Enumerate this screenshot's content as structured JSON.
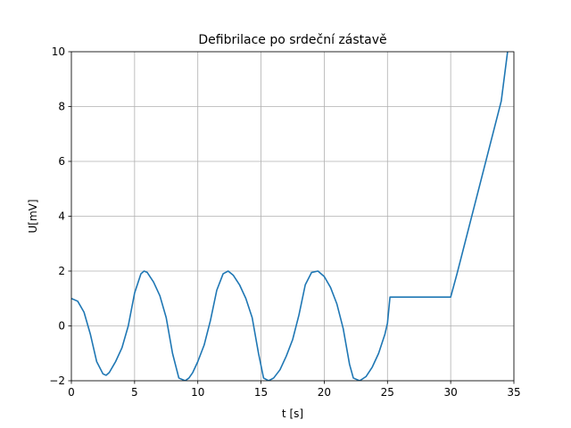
{
  "chart_data": {
    "type": "line",
    "title": "Defibrilace po srdeční zástavě",
    "xlabel": "t [s]",
    "ylabel": "U[mV]",
    "xlim": [
      0,
      35
    ],
    "ylim": [
      -2,
      10
    ],
    "xticks": [
      0,
      5,
      10,
      15,
      20,
      25,
      30,
      35
    ],
    "yticks": [
      -2,
      0,
      2,
      4,
      6,
      8,
      10
    ],
    "grid": true,
    "series": [
      {
        "color": "#1f77b4",
        "x": [
          0,
          0.5,
          1.0,
          1.5,
          2.0,
          2.5,
          2.75,
          3.0,
          3.5,
          4.0,
          4.5,
          5.0,
          5.5,
          5.75,
          6.0,
          6.5,
          7.0,
          7.5,
          8.0,
          8.5,
          9.0,
          9.3,
          9.6,
          10.0,
          10.5,
          11.0,
          11.5,
          12.0,
          12.4,
          12.8,
          13.3,
          13.8,
          14.3,
          14.8,
          15.2,
          15.6,
          16.0,
          16.5,
          17.0,
          17.5,
          18.0,
          18.5,
          19.0,
          19.5,
          20.0,
          20.5,
          21.0,
          21.5,
          22.0,
          22.3,
          22.8,
          23.3,
          23.8,
          24.3,
          24.8,
          25.0,
          25.2,
          26,
          28,
          30,
          30.5,
          31,
          32,
          33,
          34,
          34.5
        ],
        "values": [
          1.0,
          0.9,
          0.5,
          -0.3,
          -1.3,
          -1.75,
          -1.8,
          -1.7,
          -1.3,
          -0.8,
          0.0,
          1.2,
          1.9,
          2.0,
          1.95,
          1.6,
          1.1,
          0.3,
          -1.0,
          -1.9,
          -2.0,
          -1.9,
          -1.7,
          -1.3,
          -0.7,
          0.2,
          1.3,
          1.9,
          2.0,
          1.85,
          1.5,
          1.0,
          0.3,
          -1.0,
          -1.9,
          -2.0,
          -1.9,
          -1.6,
          -1.1,
          -0.5,
          0.4,
          1.5,
          1.95,
          2.0,
          1.8,
          1.4,
          0.8,
          -0.1,
          -1.4,
          -1.9,
          -2.0,
          -1.85,
          -1.5,
          -1.0,
          -0.3,
          0.1,
          1.05,
          1.05,
          1.05,
          1.05,
          1.9,
          2.8,
          4.6,
          6.4,
          8.2,
          10.0
        ]
      }
    ]
  }
}
